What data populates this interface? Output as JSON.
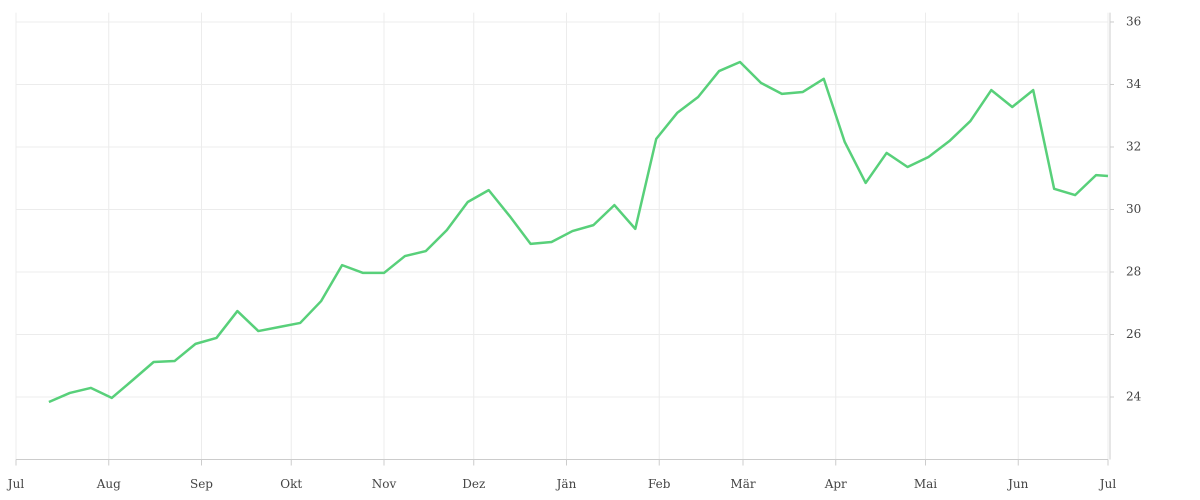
{
  "chart_data": {
    "type": "line",
    "x": [
      11,
      18,
      25,
      32,
      39,
      46,
      53,
      60,
      67,
      74,
      81,
      88,
      95,
      102,
      109,
      116,
      123,
      130,
      137,
      144,
      151,
      158,
      165,
      172,
      179,
      186,
      193,
      200,
      207,
      214,
      221,
      228,
      235,
      242,
      249,
      256,
      263,
      270,
      277,
      284,
      291,
      298,
      305,
      312,
      319,
      326,
      333,
      340,
      347,
      354,
      361,
      365
    ],
    "series": [
      {
        "color": "#58d07a",
        "values": [
          23.84,
          24.13,
          24.29,
          23.97,
          24.54,
          25.12,
          25.15,
          25.7,
          25.89,
          26.75,
          26.11,
          26.24,
          26.37,
          27.07,
          28.22,
          27.97,
          27.97,
          28.51,
          28.67,
          29.34,
          30.24,
          30.62,
          29.79,
          28.9,
          28.96,
          29.31,
          29.5,
          30.14,
          29.38,
          32.26,
          33.09,
          33.6,
          34.43,
          34.72,
          34.05,
          33.7,
          33.76,
          34.18,
          32.16,
          30.85,
          31.81,
          31.36,
          31.68,
          32.19,
          32.83,
          33.82,
          33.28,
          33.82,
          30.66,
          30.46,
          31.1,
          31.07
        ]
      }
    ],
    "xlim": [
      0,
      365
    ],
    "xticks": [
      {
        "value": 0,
        "label": "Jul"
      },
      {
        "value": 31,
        "label": "Aug"
      },
      {
        "value": 62,
        "label": "Sep"
      },
      {
        "value": 92,
        "label": "Okt"
      },
      {
        "value": 123,
        "label": "Nov"
      },
      {
        "value": 153,
        "label": "Dez"
      },
      {
        "value": 184,
        "label": "Jän"
      },
      {
        "value": 215,
        "label": "Feb"
      },
      {
        "value": 243,
        "label": "Mär"
      },
      {
        "value": 274,
        "label": "Apr"
      },
      {
        "value": 304,
        "label": "Mai"
      },
      {
        "value": 335,
        "label": "Jun"
      },
      {
        "value": 365,
        "label": "Jul"
      }
    ],
    "ylim": [
      22,
      36.3
    ],
    "yticks": [
      24,
      26,
      28,
      30,
      32,
      34,
      36
    ],
    "grid": true
  }
}
